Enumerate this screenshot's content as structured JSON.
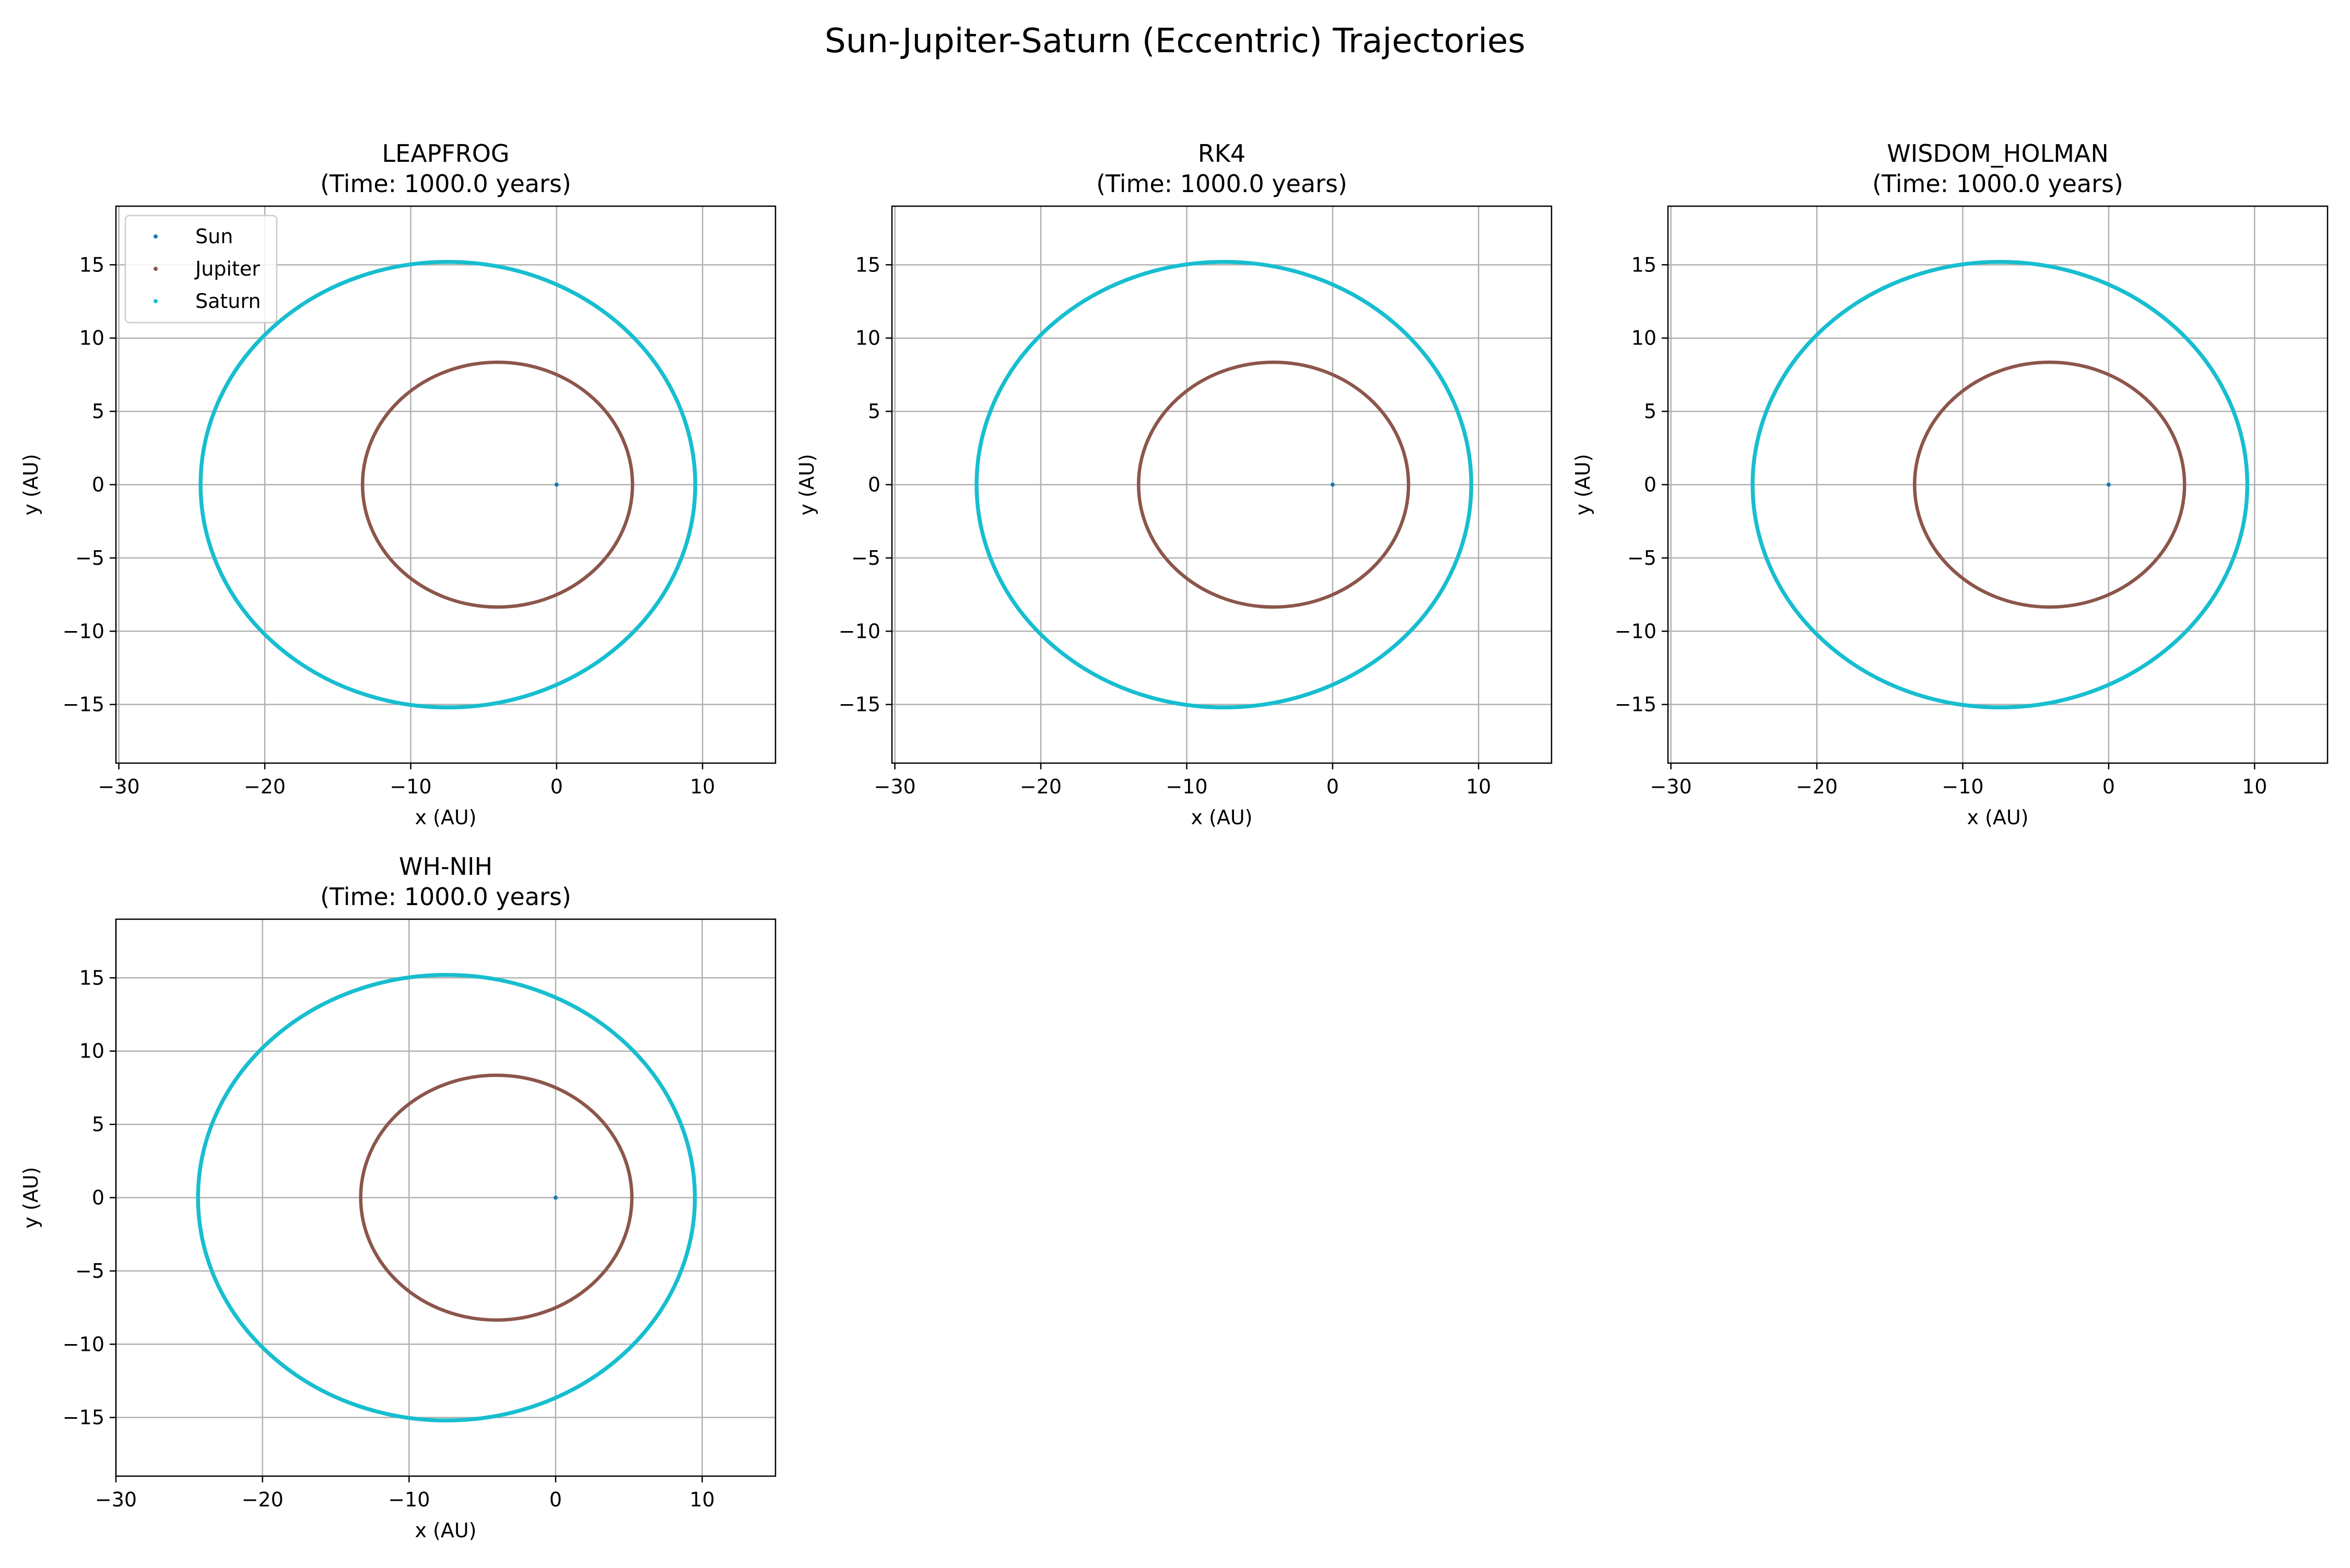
{
  "figure": {
    "title": "Sun-Jupiter-Saturn (Eccentric) Trajectories"
  },
  "colors": {
    "sun": "#1f77b4",
    "jupiter": "#8c564b",
    "saturn": "#17becf",
    "grid": "#b0b0b0",
    "axes": "#000000"
  },
  "chart_data": [
    {
      "type": "line",
      "title": "LEAPFROG",
      "subtitle": "(Time: 1000.0 years)",
      "xlabel": "x (AU)",
      "ylabel": "y (AU)",
      "xlim": [
        -30.2,
        15
      ],
      "ylim": [
        -19,
        19
      ],
      "xticks": [
        -30,
        -20,
        -10,
        0,
        10
      ],
      "yticks": [
        -15,
        -10,
        -5,
        0,
        5,
        10,
        15
      ],
      "grid": true,
      "legend": {
        "placement": "upper-left",
        "entries": [
          "Sun",
          "Jupiter",
          "Saturn"
        ]
      },
      "series": [
        {
          "name": "Sun",
          "kind": "point",
          "x": [
            0
          ],
          "y": [
            0
          ]
        },
        {
          "name": "Jupiter",
          "kind": "ellipse",
          "center": [
            -4.05,
            0
          ],
          "semi_axes": [
            9.25,
            8.35
          ],
          "x_range": [
            -13.3,
            5.2
          ],
          "y_range": [
            -8.35,
            8.35
          ]
        },
        {
          "name": "Saturn",
          "kind": "ellipse",
          "center": [
            -7.45,
            0
          ],
          "semi_axes": [
            16.95,
            15.2
          ],
          "x_range": [
            -24.4,
            9.5
          ],
          "y_range": [
            -15.2,
            15.2
          ]
        }
      ]
    },
    {
      "type": "line",
      "title": "RK4",
      "subtitle": "(Time: 1000.0 years)",
      "xlabel": "x (AU)",
      "ylabel": "y (AU)",
      "xlim": [
        -30.2,
        15
      ],
      "ylim": [
        -19,
        19
      ],
      "xticks": [
        -30,
        -20,
        -10,
        0,
        10
      ],
      "yticks": [
        -15,
        -10,
        -5,
        0,
        5,
        10,
        15
      ],
      "grid": true,
      "series": [
        {
          "name": "Sun",
          "kind": "point",
          "x": [
            0
          ],
          "y": [
            0
          ]
        },
        {
          "name": "Jupiter",
          "kind": "ellipse",
          "center": [
            -4.05,
            0
          ],
          "semi_axes": [
            9.25,
            8.35
          ],
          "x_range": [
            -13.3,
            5.2
          ],
          "y_range": [
            -8.35,
            8.35
          ]
        },
        {
          "name": "Saturn",
          "kind": "ellipse",
          "center": [
            -7.45,
            0
          ],
          "semi_axes": [
            16.95,
            15.2
          ],
          "x_range": [
            -24.4,
            9.5
          ],
          "y_range": [
            -15.2,
            15.2
          ]
        }
      ]
    },
    {
      "type": "line",
      "title": "WISDOM_HOLMAN",
      "subtitle": "(Time: 1000.0 years)",
      "xlabel": "x (AU)",
      "ylabel": "y (AU)",
      "xlim": [
        -30.2,
        15
      ],
      "ylim": [
        -19,
        19
      ],
      "xticks": [
        -30,
        -20,
        -10,
        0,
        10
      ],
      "yticks": [
        -15,
        -10,
        -5,
        0,
        5,
        10,
        15
      ],
      "grid": true,
      "series": [
        {
          "name": "Sun",
          "kind": "point",
          "x": [
            0
          ],
          "y": [
            0
          ]
        },
        {
          "name": "Jupiter",
          "kind": "ellipse",
          "center": [
            -4.05,
            0
          ],
          "semi_axes": [
            9.25,
            8.35
          ],
          "x_range": [
            -13.3,
            5.2
          ],
          "y_range": [
            -8.35,
            8.35
          ]
        },
        {
          "name": "Saturn",
          "kind": "ellipse",
          "center": [
            -7.45,
            0
          ],
          "semi_axes": [
            16.95,
            15.2
          ],
          "x_range": [
            -24.4,
            9.5
          ],
          "y_range": [
            -15.2,
            15.2
          ]
        }
      ]
    },
    {
      "type": "line",
      "title": "WH-NIH",
      "subtitle": "(Time: 1000.0 years)",
      "xlabel": "x (AU)",
      "ylabel": "y (AU)",
      "xlim": [
        -30,
        15
      ],
      "ylim": [
        -19,
        19
      ],
      "xticks": [
        -30,
        -20,
        -10,
        0,
        10
      ],
      "yticks": [
        -15,
        -10,
        -5,
        0,
        5,
        10,
        15
      ],
      "grid": true,
      "series": [
        {
          "name": "Sun",
          "kind": "point",
          "x": [
            0
          ],
          "y": [
            0
          ]
        },
        {
          "name": "Jupiter",
          "kind": "ellipse",
          "center": [
            -4.05,
            0
          ],
          "semi_axes": [
            9.25,
            8.35
          ],
          "x_range": [
            -13.3,
            5.2
          ],
          "y_range": [
            -8.35,
            8.35
          ]
        },
        {
          "name": "Saturn",
          "kind": "ellipse",
          "center": [
            -7.45,
            0
          ],
          "semi_axes": [
            16.95,
            15.2
          ],
          "x_range": [
            -24.4,
            9.5
          ],
          "y_range": [
            -15.2,
            15.2
          ]
        }
      ]
    }
  ]
}
